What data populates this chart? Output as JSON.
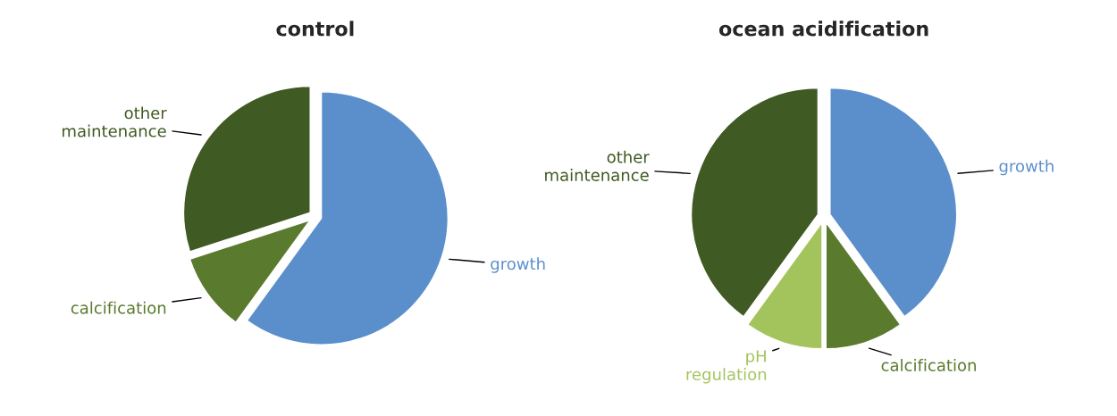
{
  "chart_data": [
    {
      "type": "pie",
      "title": "control",
      "categories": [
        "growth",
        "calcification",
        "other\nmaintenance"
      ],
      "values": [
        60,
        10,
        30
      ],
      "colors": [
        "#5b8fcb",
        "#5a7a2e",
        "#3f5a22"
      ]
    },
    {
      "type": "pie",
      "title": "ocean acidification",
      "categories": [
        "growth",
        "calcification",
        "pH\nregulation",
        "other\nmaintenance"
      ],
      "values": [
        40,
        10,
        10,
        40
      ],
      "colors": [
        "#5b8fcb",
        "#5a7a2e",
        "#a3c45c",
        "#3f5a22"
      ]
    }
  ]
}
